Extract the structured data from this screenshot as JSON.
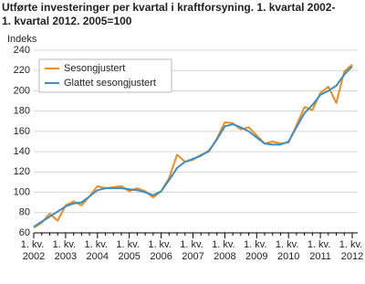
{
  "chart_data": {
    "type": "line",
    "title": [
      "Utførte investeringer per kvartal i kraftforsyning. 1. kvartal 2002-",
      "1. kvartal 2012. 2005=100"
    ],
    "y_label": "Indeks",
    "categories": [
      "1. kv. 2002",
      null,
      null,
      null,
      "1. kv. 2003",
      null,
      null,
      null,
      "1. kv. 2004",
      null,
      null,
      null,
      "1. kv. 2005",
      null,
      null,
      null,
      "1. kv. 2006",
      null,
      null,
      null,
      "1. kv. 2007",
      null,
      null,
      null,
      "1. kv. 2008",
      null,
      null,
      null,
      "1. kv. 2009",
      null,
      null,
      null,
      "1. kv. 2010",
      null,
      null,
      null,
      "1. kv. 2011",
      null,
      null,
      null,
      "1. kv. 2012"
    ],
    "series": [
      {
        "name": "Sesongjustert",
        "color": "#f28c1e",
        "values": [
          65,
          70,
          79,
          72,
          87,
          91,
          87,
          96,
          106,
          104,
          105,
          106,
          101,
          104,
          101,
          95,
          101,
          114,
          137,
          130,
          132,
          137,
          140,
          153,
          169,
          168,
          162,
          164,
          156,
          148,
          150,
          148,
          149,
          166,
          184,
          181,
          198,
          204,
          188,
          219,
          226
        ]
      },
      {
        "name": "Glattet sesongjustert",
        "color": "#3a8fc4",
        "values": [
          66,
          71,
          76,
          81,
          86,
          89,
          90,
          96,
          102,
          104,
          104,
          104,
          103,
          102,
          100,
          97,
          101,
          112,
          124,
          130,
          133,
          136,
          141,
          152,
          165,
          167,
          164,
          160,
          154,
          148,
          147,
          147,
          150,
          164,
          178,
          186,
          196,
          200,
          205,
          216,
          224
        ]
      }
    ],
    "ylim": [
      60,
      240
    ],
    "yticks": [
      60,
      80,
      100,
      120,
      140,
      160,
      180,
      200,
      220,
      240
    ],
    "grid": true,
    "legend": "top-left"
  }
}
